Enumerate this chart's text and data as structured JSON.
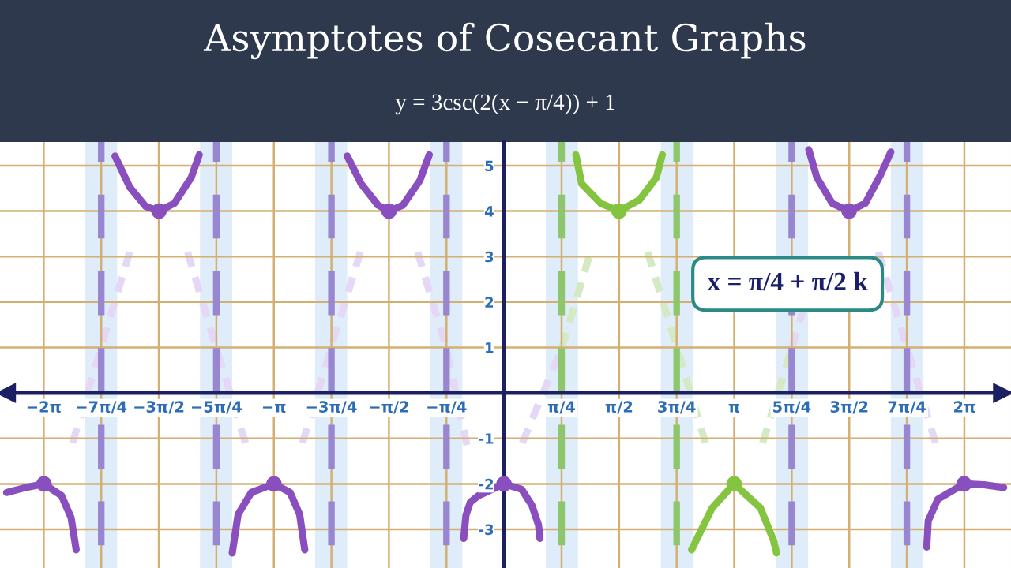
{
  "chart_data": {
    "type": "line",
    "title": "Asymptotes of Cosecant Graphs",
    "subtitle": "y = 3csc(2(x − π/4)) + 1",
    "annotations": [
      "x = π/4 + π/2 k"
    ],
    "xlim": [
      -6.88,
      6.92
    ],
    "ylim": [
      -3.85,
      5.52
    ],
    "xticks": [
      {
        "value": -6.2832,
        "label": "−2π"
      },
      {
        "value": -5.4978,
        "label": "−7π/4"
      },
      {
        "value": -4.7124,
        "label": "−3π/2"
      },
      {
        "value": -3.927,
        "label": "−5π/4"
      },
      {
        "value": -3.1416,
        "label": "−π"
      },
      {
        "value": -2.3562,
        "label": "−3π/4"
      },
      {
        "value": -1.5708,
        "label": "−π/2"
      },
      {
        "value": -0.7854,
        "label": "−π/4"
      },
      {
        "value": 0.7854,
        "label": "π/4"
      },
      {
        "value": 1.5708,
        "label": "π/2"
      },
      {
        "value": 2.3562,
        "label": "3π/4"
      },
      {
        "value": 3.1416,
        "label": "π"
      },
      {
        "value": 3.927,
        "label": "5π/4"
      },
      {
        "value": 4.7124,
        "label": "3π/2"
      },
      {
        "value": 5.4978,
        "label": "7π/4"
      },
      {
        "value": 6.2832,
        "label": "2π"
      }
    ],
    "yticks": [
      -3,
      -2,
      -1,
      1,
      2,
      3,
      4,
      5
    ],
    "grid": true,
    "bands": [
      {
        "axis": "x",
        "from": -5.72,
        "to": -5.28,
        "color": "#d9eaf9"
      },
      {
        "axis": "x",
        "from": -4.15,
        "to": -3.71,
        "color": "#d9eaf9"
      },
      {
        "axis": "x",
        "from": -2.58,
        "to": -2.14,
        "color": "#d9eaf9"
      },
      {
        "axis": "x",
        "from": -1.01,
        "to": -0.57,
        "color": "#d9eaf9"
      },
      {
        "axis": "x",
        "from": 0.57,
        "to": 1.01,
        "color": "#d9eaf9"
      },
      {
        "axis": "x",
        "from": 2.14,
        "to": 2.58,
        "color": "#d9eaf9"
      },
      {
        "axis": "x",
        "from": 3.71,
        "to": 4.15,
        "color": "#d9eaf9"
      },
      {
        "axis": "x",
        "from": 5.28,
        "to": 5.72,
        "color": "#d9eaf9"
      }
    ],
    "ref_lines": [
      {
        "axis": "x",
        "value": -5.4978,
        "color": "#9886d0",
        "line_style": "dashed"
      },
      {
        "axis": "x",
        "value": -3.927,
        "color": "#9886d0",
        "line_style": "dashed"
      },
      {
        "axis": "x",
        "value": -2.3562,
        "color": "#9886d0",
        "line_style": "dashed"
      },
      {
        "axis": "x",
        "value": -0.7854,
        "color": "#9886d0",
        "line_style": "dashed"
      },
      {
        "axis": "x",
        "value": 0.7854,
        "color": "#8dc66c",
        "line_style": "dashed"
      },
      {
        "axis": "x",
        "value": 2.3562,
        "color": "#8dc66c",
        "line_style": "dashed"
      },
      {
        "axis": "x",
        "value": 3.927,
        "color": "#9886d0",
        "line_style": "dashed"
      },
      {
        "axis": "x",
        "value": 5.4978,
        "color": "#9886d0",
        "line_style": "dashed"
      }
    ],
    "series": [
      {
        "color": "#e5d8f6",
        "line_style": "dashed",
        "x": [
          -5.89,
          -5.5,
          -5.11,
          null,
          -4.32,
          -3.93,
          -3.53,
          null,
          -2.75,
          -2.36,
          -1.96,
          null,
          -1.18,
          -0.79,
          -0.5,
          null,
          0.25,
          0.79,
          null,
          3.93,
          4.32,
          null,
          5.11,
          5.5,
          5.89
        ],
        "values": [
          -1.1,
          1,
          3.1,
          null,
          3.1,
          1,
          -1.1,
          null,
          -1.1,
          1,
          3.1,
          null,
          3.1,
          1,
          -1.2,
          null,
          -1.1,
          1,
          null,
          1,
          3.1,
          null,
          3.1,
          1,
          -1.1
        ]
      },
      {
        "color": "#d5e9c4",
        "line_style": "dashed",
        "x": [
          0.79,
          1.18,
          null,
          1.96,
          2.36,
          2.75,
          null,
          3.53,
          3.93
        ],
        "values": [
          1,
          3.1,
          null,
          3.1,
          1,
          -1.1,
          null,
          -1.1,
          1
        ]
      },
      {
        "color": "#8a4fbe",
        "line_style": "solid",
        "x": [
          -6.79,
          -6.53,
          -6.28,
          -6.04,
          -5.91,
          -5.84,
          null,
          -5.31,
          -5.11,
          -4.89,
          -4.71,
          -4.5,
          -4.27,
          -4.16,
          null,
          -3.71,
          -3.63,
          -3.45,
          -3.14,
          -2.92,
          -2.79,
          -2.72,
          null,
          -2.14,
          -1.95,
          -1.72,
          -1.57,
          -1.38,
          -1.15,
          -1.02,
          null,
          -0.55,
          -0.52,
          -0.46,
          -0.35,
          0.0,
          0.24,
          0.38,
          0.47,
          0.49,
          null,
          4.16,
          4.27,
          4.48,
          4.71,
          4.93,
          5.14,
          5.28,
          null,
          5.77,
          5.79,
          5.92,
          6.28,
          6.55,
          6.82
        ],
        "values": [
          -2.19,
          -2.08,
          -2.0,
          -2.26,
          -2.74,
          -3.45,
          null,
          5.21,
          4.53,
          4.1,
          4.0,
          4.17,
          4.74,
          5.24,
          null,
          -3.52,
          -2.67,
          -2.19,
          -2.0,
          -2.19,
          -2.67,
          -3.45,
          null,
          5.21,
          4.6,
          4.13,
          4.0,
          4.13,
          4.67,
          5.24,
          null,
          -3.2,
          -2.69,
          -2.4,
          -2.26,
          -2.0,
          -2.12,
          -2.47,
          -2.9,
          -3.2,
          null,
          5.35,
          4.74,
          4.17,
          4.0,
          4.17,
          4.8,
          5.3,
          null,
          -3.39,
          -2.81,
          -2.34,
          -2.0,
          -2.02,
          -2.08
        ]
      },
      {
        "color": "#84c441",
        "line_style": "solid",
        "x": [
          0.98,
          1.06,
          1.32,
          1.57,
          1.85,
          2.08,
          2.16,
          null,
          2.56,
          2.62,
          2.84,
          3.14,
          3.5,
          3.68,
          3.72
        ],
        "values": [
          5.24,
          4.6,
          4.17,
          4.0,
          4.25,
          4.74,
          5.24,
          null,
          -3.45,
          -3.25,
          -2.53,
          -2.0,
          -2.53,
          -3.25,
          -3.52
        ]
      },
      {
        "type": "scatter",
        "color": "#8a4fbe",
        "marker": "circle",
        "x": [
          -6.28,
          -4.71,
          -3.14,
          -1.57,
          0.0,
          4.71,
          6.28
        ],
        "values": [
          -2.0,
          4.0,
          -2.0,
          4.0,
          -2.0,
          4.0,
          -2.0
        ]
      },
      {
        "type": "scatter",
        "color": "#84c441",
        "marker": "circle",
        "x": [
          1.57,
          3.14
        ],
        "values": [
          4.0,
          -2.0
        ]
      }
    ]
  }
}
